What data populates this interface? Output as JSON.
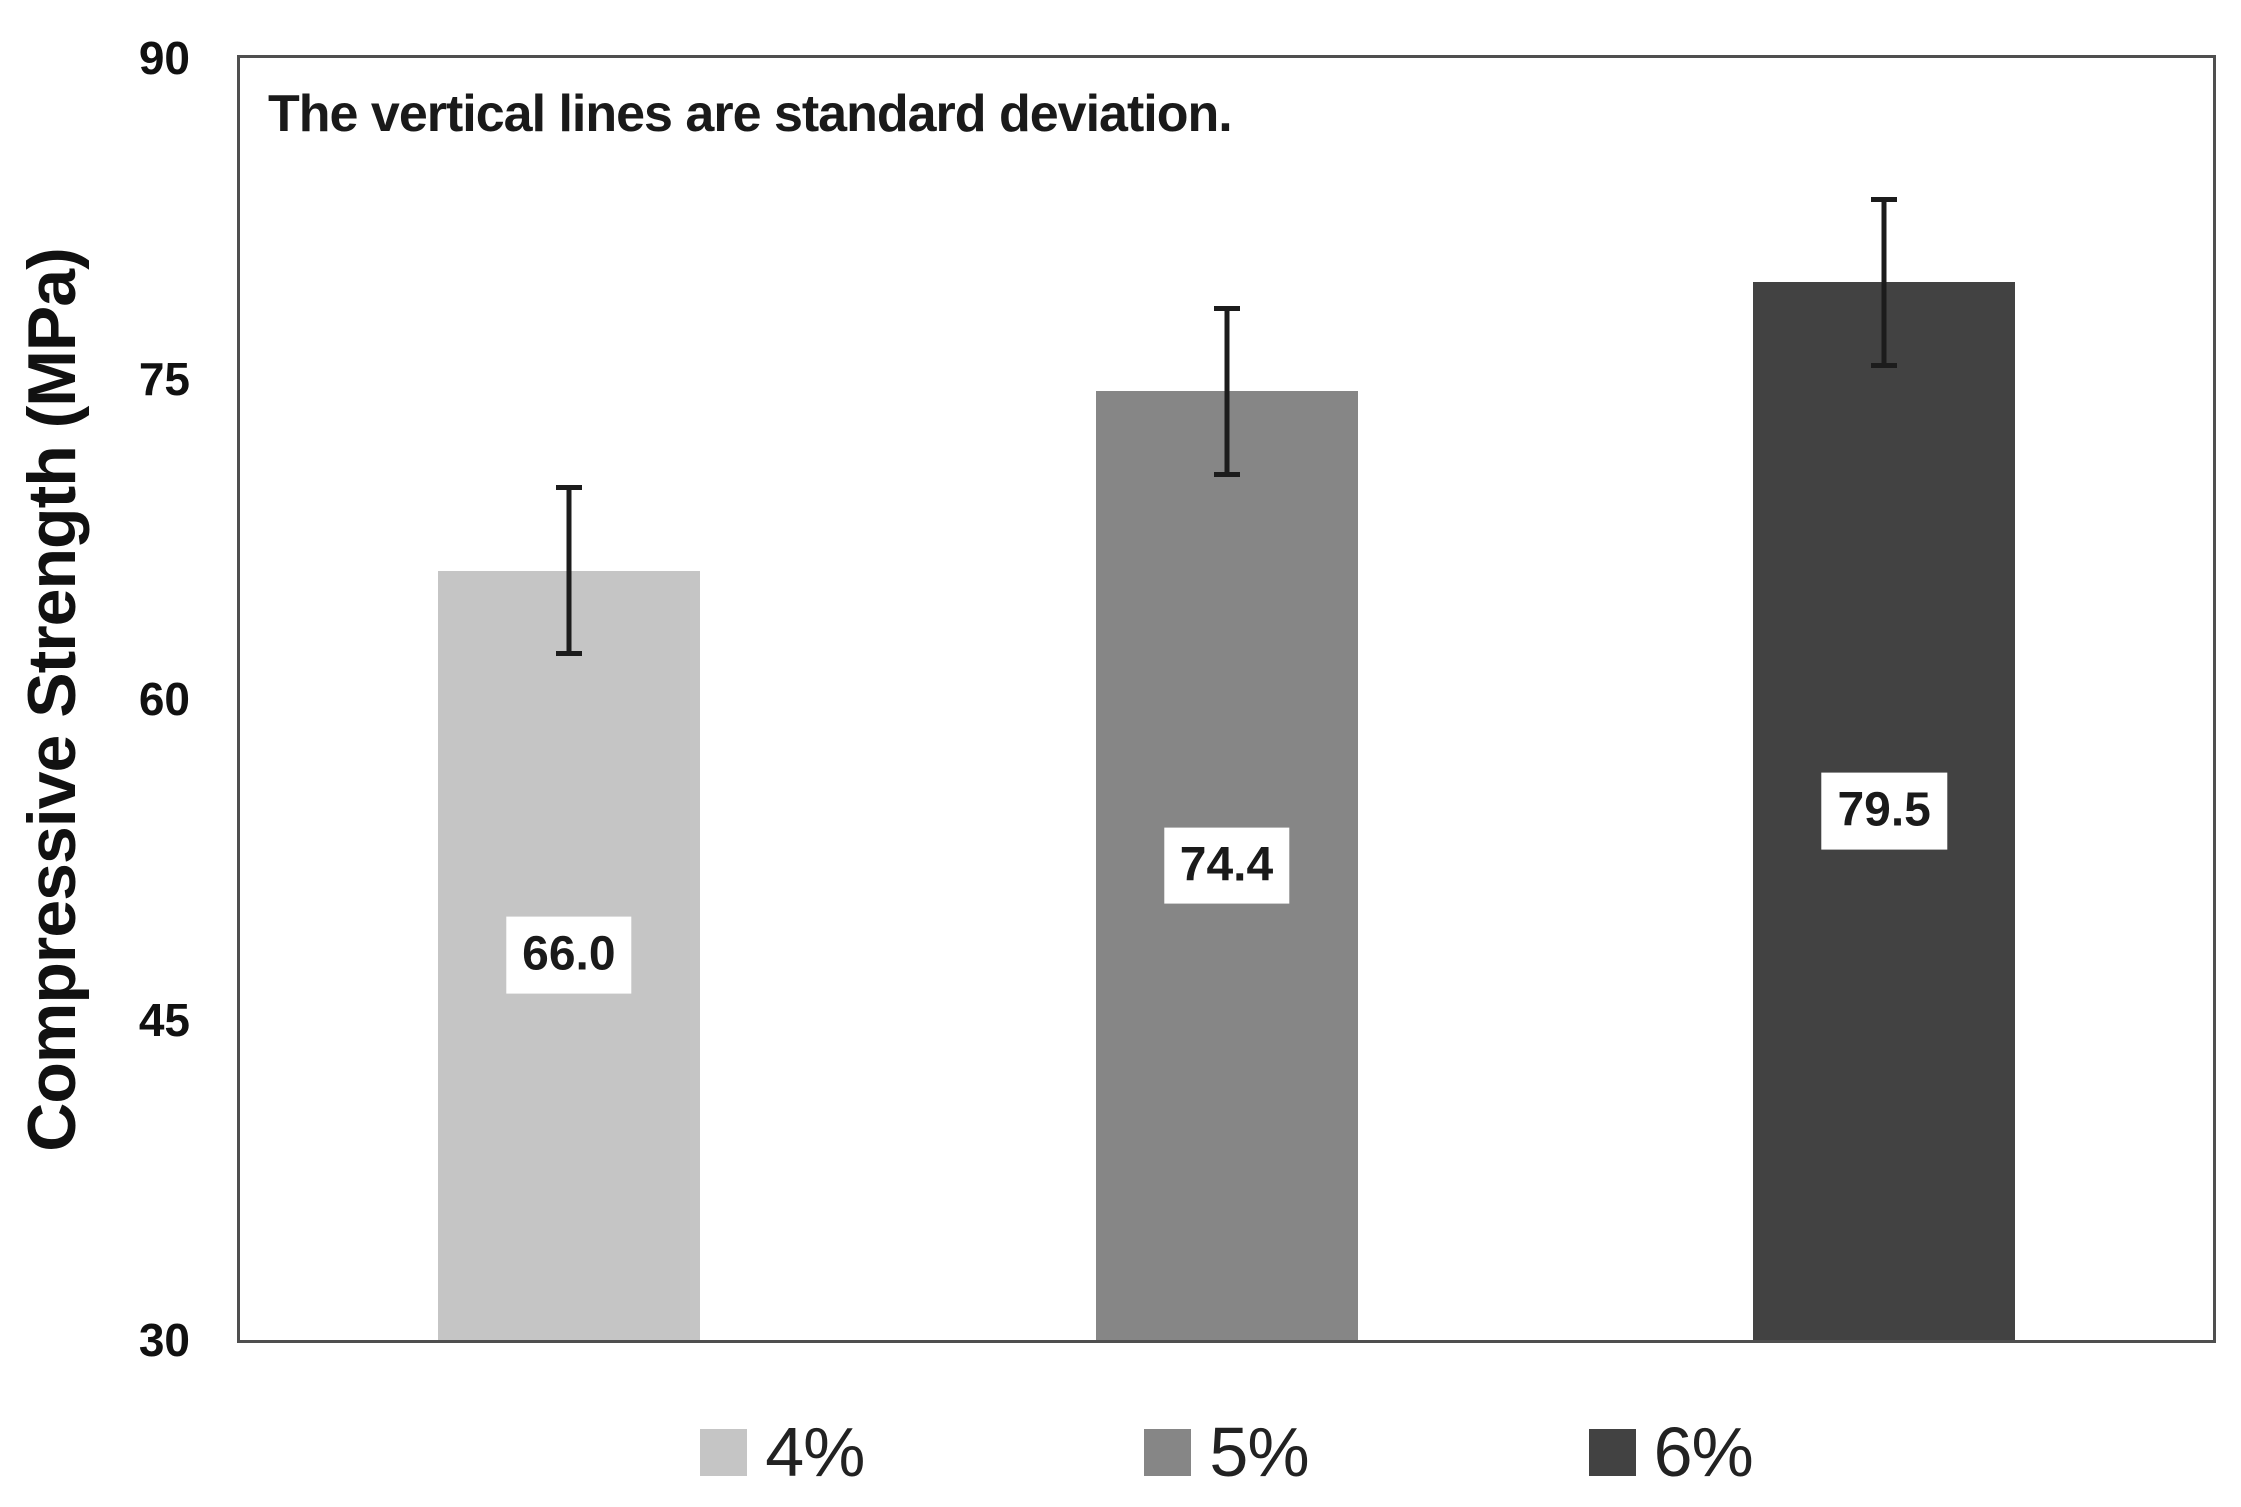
{
  "chart_data": {
    "type": "bar",
    "title": "",
    "ylabel": "Compressive Strength (MPa)",
    "xlabel": "",
    "annotation": "The vertical lines are standard deviation.",
    "categories": [
      "4%",
      "5%",
      "6%"
    ],
    "values": [
      66.0,
      74.4,
      79.5
    ],
    "value_labels": [
      "66.0",
      "74.4",
      "79.5"
    ],
    "error_bars": {
      "meaning": "standard deviation",
      "values": [
        4.0,
        4.0,
        4.0
      ]
    },
    "ylim": [
      30,
      90
    ],
    "yticks": [
      90,
      75,
      60,
      45,
      30
    ],
    "grid": false,
    "legend_position": "bottom",
    "legend_entries": [
      "4%",
      "5%",
      "6%"
    ],
    "bar_colors": [
      "#c5c5c5",
      "#868686",
      "#424242"
    ],
    "axis_color": "#4f4f4f",
    "error_bar_color": "#1c1c1c",
    "label_box_color": "#ffffff",
    "text_color": "#111111"
  }
}
